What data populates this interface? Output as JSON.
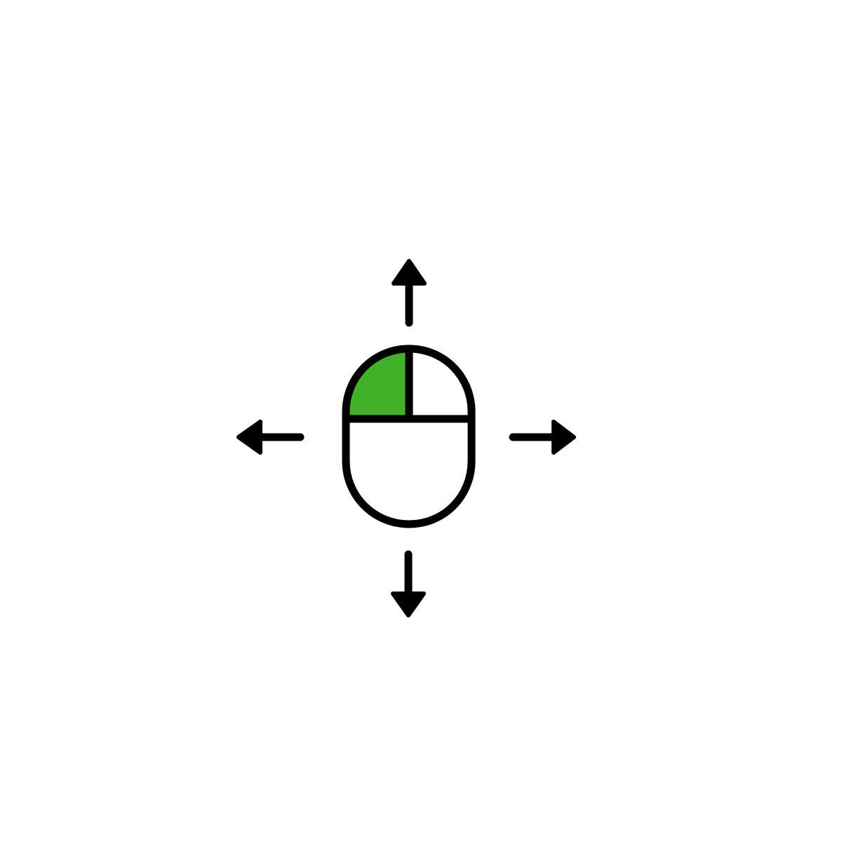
{
  "icon": {
    "name": "mouse-drag-left-click-icon",
    "active_button": "left-button",
    "directions": [
      "up",
      "down",
      "left",
      "right"
    ]
  },
  "colors": {
    "background": "#ffffff",
    "stroke": "#000000",
    "highlight": "#43b02a"
  }
}
